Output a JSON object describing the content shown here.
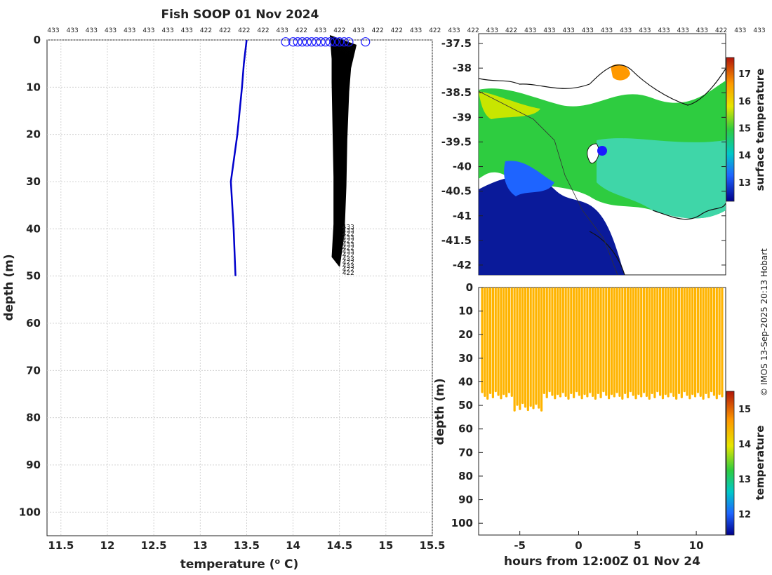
{
  "title": "Fish SOOP 01 Nov 2024",
  "credit": "© IMOS 13-Sep-2025 20:13 Hobart",
  "colors": {
    "mean_profile": "#0000cc",
    "profiles": "#000000",
    "surface_marker": "#1a1aff",
    "track_fill": "#ffb400"
  },
  "chart_data": [
    {
      "type": "line",
      "name": "profiles",
      "xlabel": "temperature (° C)",
      "ylabel": "depth (m)",
      "xlim": [
        11.35,
        15.5
      ],
      "ylim": [
        105,
        0
      ],
      "xticks": [
        "11.5",
        "12",
        "12.5",
        "13",
        "13.5",
        "14",
        "14.5",
        "15",
        "15.5"
      ],
      "yticks": [
        "0",
        "10",
        "20",
        "30",
        "40",
        "50",
        "60",
        "70",
        "80",
        "90",
        "100"
      ],
      "top_labels": [
        "433",
        "433",
        "433",
        "433",
        "433",
        "433",
        "433",
        "433",
        "422",
        "422",
        "422",
        "422",
        "433",
        "422",
        "433",
        "422",
        "433",
        "422",
        "422",
        "433",
        "422",
        "433",
        "422",
        "433",
        "422",
        "433",
        "433",
        "433",
        "433",
        "433",
        "433",
        "433",
        "433",
        "433",
        "433",
        "422",
        "433",
        "433"
      ],
      "series": [
        {
          "name": "climatology",
          "depth": [
            0,
            5,
            10,
            20,
            30,
            40,
            50
          ],
          "temp": [
            13.5,
            13.47,
            13.45,
            13.4,
            13.33,
            13.36,
            13.38
          ]
        },
        {
          "name": "profile-envelope-low",
          "depth": [
            0,
            5,
            10,
            20,
            30,
            40,
            47
          ],
          "temp": [
            14.4,
            14.42,
            14.42,
            14.43,
            14.44,
            14.44,
            14.42
          ]
        },
        {
          "name": "profile-envelope-high",
          "depth": [
            0,
            5,
            10,
            20,
            30,
            40,
            47
          ],
          "temp": [
            14.68,
            14.62,
            14.6,
            14.58,
            14.57,
            14.55,
            14.5
          ]
        }
      ],
      "surface_points": [
        13.92,
        14.0,
        14.05,
        14.1,
        14.15,
        14.2,
        14.25,
        14.3,
        14.35,
        14.4,
        14.45,
        14.5,
        14.55,
        14.6,
        14.78
      ],
      "bottom_labels": [
        "433",
        "433",
        "422",
        "433",
        "422",
        "433",
        "422",
        "433",
        "422",
        "433",
        "422",
        "433",
        "422",
        "422"
      ]
    },
    {
      "type": "heatmap",
      "name": "surface-map",
      "ylabel": "",
      "yticks": [
        "-37.5",
        "-38",
        "-38.5",
        "-39",
        "-39.5",
        "-40",
        "-40.5",
        "-41",
        "-41.5",
        "-42"
      ],
      "ylim": [
        -42.2,
        -37.3
      ],
      "colorbar_label": "surface temperature",
      "colorbar_ticks": [
        "13",
        "14",
        "15",
        "16",
        "17"
      ],
      "colorbar_range": [
        12.3,
        17.6
      ]
    },
    {
      "type": "scatter",
      "name": "depth-time",
      "xlabel": "hours from 12:00Z 01 Nov 24",
      "ylabel": "depth (m)",
      "xticks": [
        "-5",
        "0",
        "5",
        "10"
      ],
      "xlim": [
        -8.5,
        12.5
      ],
      "yticks": [
        "0",
        "10",
        "20",
        "30",
        "40",
        "50",
        "60",
        "70",
        "80",
        "90",
        "100"
      ],
      "ylim": [
        105,
        0
      ],
      "colorbar_label": "temperature",
      "colorbar_ticks": [
        "12",
        "13",
        "14",
        "15"
      ],
      "colorbar_range": [
        11.4,
        15.5
      ]
    }
  ]
}
